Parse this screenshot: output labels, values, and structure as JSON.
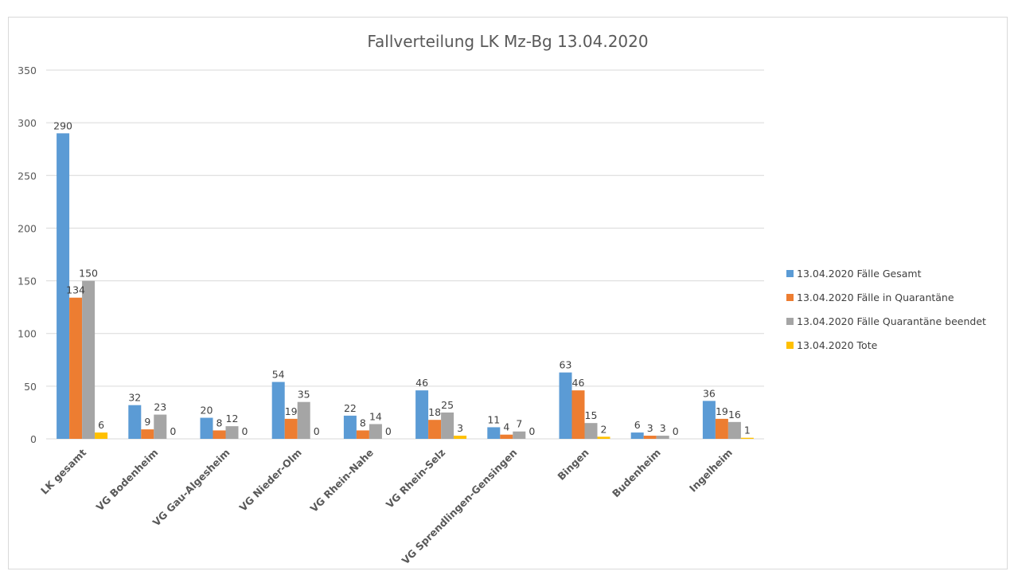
{
  "chart_data": {
    "type": "bar",
    "title": "Fallverteilung LK Mz-Bg 13.04.2020",
    "xlabel": "",
    "ylabel": "",
    "ylim": [
      0,
      350
    ],
    "yticks": [
      0,
      50,
      100,
      150,
      200,
      250,
      300,
      350
    ],
    "grid": true,
    "legend_position": "right",
    "categories": [
      "LK gesamt",
      "VG Bodenheim",
      "VG Gau-Algesheim",
      "VG Nieder-Olm",
      "VG Rhein-Nahe",
      "VG Rhein-Selz",
      "VG Sprendlingen-Gensingen",
      "Bingen",
      "Budenheim",
      "Ingelheim"
    ],
    "series": [
      {
        "name": "13.04.2020 Fälle Gesamt",
        "color": "#5b9bd5",
        "values": [
          290,
          32,
          20,
          54,
          22,
          46,
          11,
          63,
          6,
          36
        ]
      },
      {
        "name": "13.04.2020 Fälle in Quarantäne",
        "color": "#ed7d31",
        "values": [
          134,
          9,
          8,
          19,
          8,
          18,
          4,
          46,
          3,
          19
        ]
      },
      {
        "name": "13.04.2020 Fälle Quarantäne beendet",
        "color": "#a5a5a5",
        "values": [
          150,
          23,
          12,
          35,
          14,
          25,
          7,
          15,
          3,
          16
        ]
      },
      {
        "name": "13.04.2020 Tote",
        "color": "#ffc000",
        "values": [
          6,
          0,
          0,
          0,
          0,
          3,
          0,
          2,
          0,
          1
        ]
      }
    ]
  }
}
